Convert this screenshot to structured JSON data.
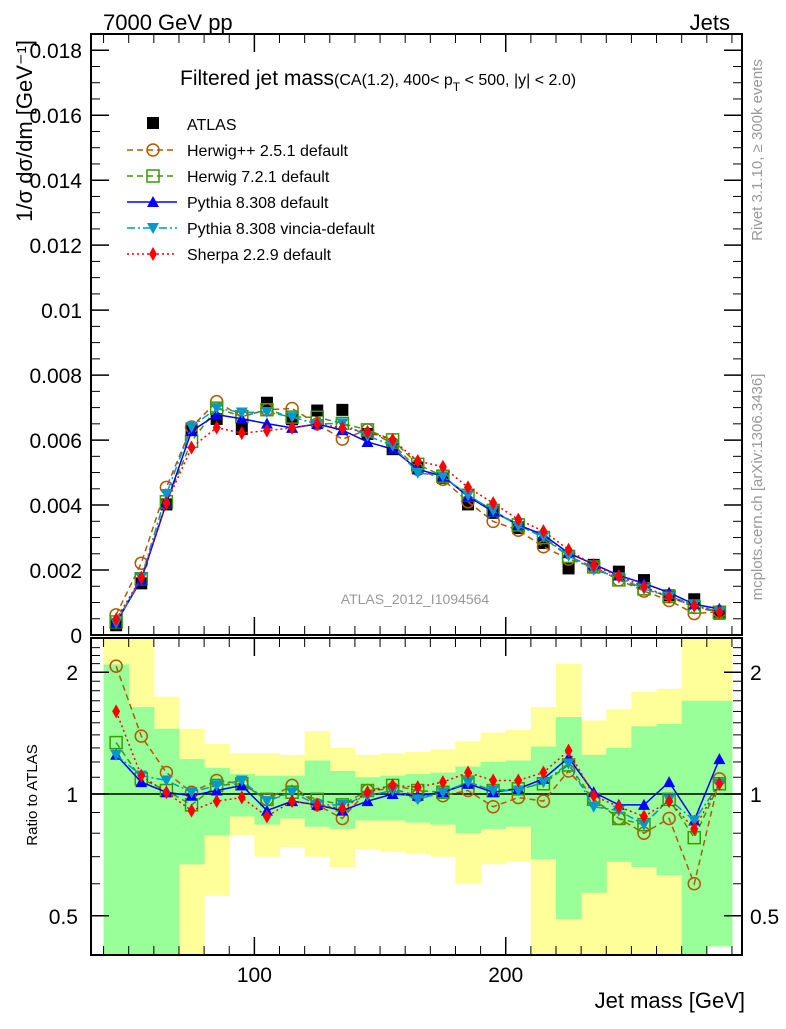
{
  "header": {
    "left": "7000 GeV pp",
    "right": "Jets"
  },
  "side_text": {
    "top": "Rivet 3.1.10, ≥ 300k events",
    "bottom": "mcplots.cern.ch [arXiv:1306.3436]"
  },
  "watermark": "ATLAS_2012_I1094564",
  "chart_data": {
    "type": "line",
    "title": "Filtered jet mass",
    "subtitle": "(CA(1.2), 400< p_T < 500, |y| < 2.0)",
    "title_sub_parts": {
      "pre": "(CA(1.2), 400< p",
      "sub": "T",
      "post": " < 500, |y| < 2.0)"
    },
    "xlabel": "Jet mass [GeV]",
    "ylabel": "1/σ dσ/dm [GeV⁻¹]",
    "ratio_ylabel": "Ratio to ATLAS",
    "xlim": [
      35,
      294
    ],
    "ylim": [
      0,
      0.0185
    ],
    "ratio_ylim": [
      0.4,
      2.43
    ],
    "ratio_scale": "log",
    "x_ticks": [
      "100",
      "200"
    ],
    "x_tick_values": [
      100,
      200
    ],
    "y_ticks": [
      "0",
      "0.002",
      "0.004",
      "0.006",
      "0.008",
      "0.01",
      "0.012",
      "0.014",
      "0.016",
      "0.018"
    ],
    "y_tick_values": [
      0,
      0.002,
      0.004,
      0.006,
      0.008,
      0.01,
      0.012,
      0.014,
      0.016,
      0.018
    ],
    "ratio_ticks": [
      "0.5",
      "1",
      "2"
    ],
    "ratio_tick_values": [
      0.5,
      1,
      2
    ],
    "legend_position": "top-left",
    "x": [
      45,
      55,
      65,
      75,
      85,
      95,
      105,
      115,
      125,
      135,
      145,
      155,
      165,
      175,
      185,
      195,
      205,
      215,
      225,
      235,
      245,
      255,
      265,
      275,
      285
    ],
    "bin_width": 10,
    "data": {
      "name": "ATLAS",
      "color": "#000000",
      "marker": "square",
      "values": [
        0.0003,
        0.00159,
        0.00402,
        0.00634,
        0.00665,
        0.00634,
        0.00715,
        0.00664,
        0.00691,
        0.00693,
        0.00619,
        0.00572,
        0.00515,
        0.00484,
        0.00402,
        0.00376,
        0.00329,
        0.00283,
        0.00205,
        0.00216,
        0.00195,
        0.00169,
        0.00122,
        0.0011,
        0.00066
      ]
    },
    "series": [
      {
        "name": "Herwig++ 2.5.1 default",
        "color": "#b35900",
        "marker": "circle-open",
        "dash": "6,4",
        "ratio": [
          2.07,
          1.39,
          1.13,
          1.01,
          1.08,
          1.06,
          0.97,
          1.05,
          0.94,
          0.87,
          1.02,
          1.03,
          0.99,
          0.99,
          1.02,
          0.93,
          0.98,
          0.96,
          1.14,
          0.97,
          0.87,
          0.8,
          0.87,
          0.6,
          1.09
        ]
      },
      {
        "name": "Herwig 7.2.1 default",
        "color": "#3a9a00",
        "marker": "square-open",
        "dash": "6,4",
        "ratio": [
          1.34,
          1.09,
          1.02,
          0.94,
          1.05,
          1.06,
          0.97,
          1.01,
          0.97,
          0.94,
          1.02,
          1.05,
          1.02,
          1.01,
          1.07,
          1.02,
          1.03,
          1.06,
          1.18,
          0.97,
          0.87,
          0.84,
          0.97,
          0.78,
          1.06
        ]
      },
      {
        "name": "Pythia 8.308 default",
        "color": "#0000ff",
        "marker": "triangle-up",
        "dash": "",
        "ratio": [
          1.25,
          1.07,
          1.01,
          0.99,
          1.02,
          1.05,
          0.91,
          0.96,
          0.94,
          0.91,
          0.96,
          1.0,
          0.99,
          1.01,
          1.06,
          1.01,
          1.03,
          1.09,
          1.23,
          1.01,
          0.94,
          0.94,
          1.07,
          0.86,
          1.22
        ]
      },
      {
        "name": "Pythia 8.308 vincia-default",
        "color": "#0099cc",
        "marker": "triangle-down",
        "dash": "8,3,2,3",
        "ratio": [
          1.25,
          1.11,
          1.08,
          1.01,
          1.05,
          1.08,
          0.96,
          1.01,
          0.94,
          0.94,
          0.99,
          1.02,
          0.97,
          1.01,
          1.07,
          1.02,
          1.02,
          1.07,
          1.19,
          0.93,
          0.91,
          0.84,
          0.97,
          0.86,
          1.06
        ]
      },
      {
        "name": "Sherpa 2.2.9 default",
        "color": "#ff0000",
        "marker": "diamond",
        "dash": "2,3",
        "ratio": [
          1.6,
          1.11,
          1.01,
          0.91,
          0.96,
          0.98,
          0.88,
          0.96,
          0.94,
          0.92,
          1.01,
          1.05,
          1.04,
          1.07,
          1.13,
          1.08,
          1.08,
          1.13,
          1.28,
          0.99,
          0.93,
          0.88,
          0.96,
          0.82,
          1.06
        ]
      }
    ],
    "bands": {
      "outer": {
        "color": "#ffff99",
        "lo": [
          0.3,
          0.3,
          0.47,
          0.3,
          0.56,
          0.79,
          0.7,
          0.74,
          0.7,
          0.66,
          0.73,
          0.72,
          0.71,
          0.7,
          0.6,
          0.67,
          0.68,
          0.3,
          0.3,
          0.3,
          0.3,
          0.3,
          0.3,
          0.3,
          0.42
        ],
        "hi": [
          2.6,
          2.6,
          1.74,
          1.45,
          1.33,
          1.26,
          1.26,
          1.25,
          1.43,
          1.3,
          1.25,
          1.26,
          1.27,
          1.29,
          1.35,
          1.42,
          1.44,
          1.64,
          2.1,
          1.52,
          1.62,
          1.79,
          1.82,
          2.6,
          2.6
        ]
      },
      "inner": {
        "color": "#99ff99",
        "lo": [
          0.3,
          0.3,
          0.3,
          0.67,
          0.79,
          0.88,
          0.84,
          0.87,
          0.83,
          0.82,
          0.86,
          0.86,
          0.85,
          0.84,
          0.8,
          0.82,
          0.83,
          0.69,
          0.49,
          0.57,
          0.68,
          0.66,
          0.63,
          0.3,
          0.42
        ],
        "hi": [
          2.09,
          1.64,
          1.45,
          1.22,
          1.16,
          1.12,
          1.11,
          1.11,
          1.21,
          1.14,
          1.1,
          1.11,
          1.12,
          1.13,
          1.17,
          1.2,
          1.21,
          1.31,
          1.55,
          1.25,
          1.3,
          1.47,
          1.49,
          1.7,
          1.7
        ]
      }
    }
  }
}
